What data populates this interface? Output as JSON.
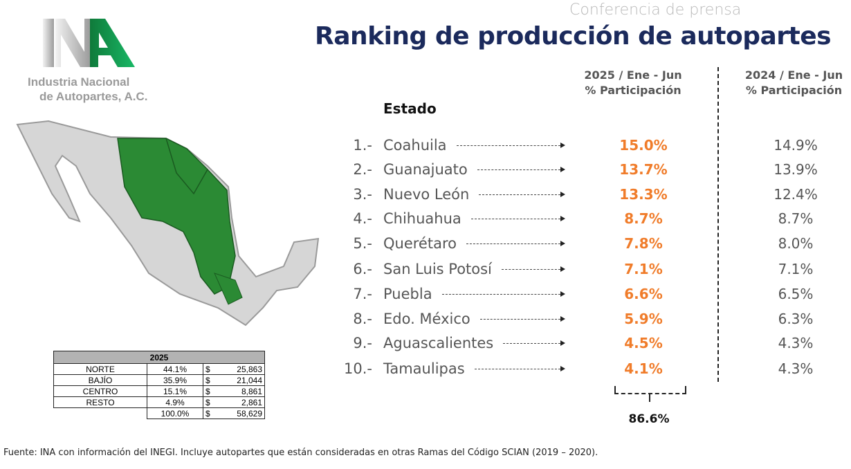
{
  "header": {
    "subtitle": "Conferencia de prensa",
    "title": "Ranking de producción de autopartes"
  },
  "logo": {
    "letters": "INA",
    "line1": "Industria Nacional",
    "line2": "de Autopartes, A.C."
  },
  "columns": {
    "estado": "Estado",
    "col2025_line1": "2025 / Ene - Jun",
    "col2025_line2": "% Participación",
    "col2024_line1": "2024 / Ene - Jun",
    "col2024_line2": "% Participación"
  },
  "ranking": [
    {
      "rank": "1.-",
      "state": "Coahuila",
      "v2025": "15.0%",
      "v2024": "14.9%"
    },
    {
      "rank": "2.-",
      "state": "Guanajuato",
      "v2025": "13.7%",
      "v2024": "13.9%"
    },
    {
      "rank": "3.-",
      "state": "Nuevo León",
      "v2025": "13.3%",
      "v2024": "12.4%"
    },
    {
      "rank": "4.-",
      "state": "Chihuahua",
      "v2025": "8.7%",
      "v2024": "8.7%"
    },
    {
      "rank": "5.-",
      "state": "Querétaro",
      "v2025": "7.8%",
      "v2024": "8.0%"
    },
    {
      "rank": "6.-",
      "state": "San Luis Potosí",
      "v2025": "7.1%",
      "v2024": "7.1%"
    },
    {
      "rank": "7.-",
      "state": "Puebla",
      "v2025": "6.6%",
      "v2024": "6.5%"
    },
    {
      "rank": "8.-",
      "state": "Edo. México",
      "v2025": "5.9%",
      "v2024": "6.3%"
    },
    {
      "rank": "9.-",
      "state": "Aguascalientes",
      "v2025": "4.5%",
      "v2024": "4.3%"
    },
    {
      "rank": "10.-",
      "state": "Tamaulipas",
      "v2025": "4.1%",
      "v2024": "4.3%"
    }
  ],
  "top10_total": "86.6%",
  "region_table": {
    "header": "2025",
    "rows": [
      {
        "region": "NORTE",
        "pct": "44.1%",
        "cur": "$",
        "value": "25,863"
      },
      {
        "region": "BAJÍO",
        "pct": "35.9%",
        "cur": "$",
        "value": "21,044"
      },
      {
        "region": "CENTRO",
        "pct": "15.1%",
        "cur": "$",
        "value": "8,861"
      },
      {
        "region": "RESTO",
        "pct": "4.9%",
        "cur": "$",
        "value": "2,861"
      }
    ],
    "total": {
      "pct": "100.0%",
      "cur": "$",
      "value": "58,629"
    }
  },
  "footer": "Fuente: INA con información del INEGI. Incluye autopartes que están consideradas en otras Ramas del Código SCIAN (2019 – 2020).",
  "colors": {
    "title": "#1b2a5c",
    "highlight": "#f07c2a",
    "green": "#1f8a3a"
  }
}
